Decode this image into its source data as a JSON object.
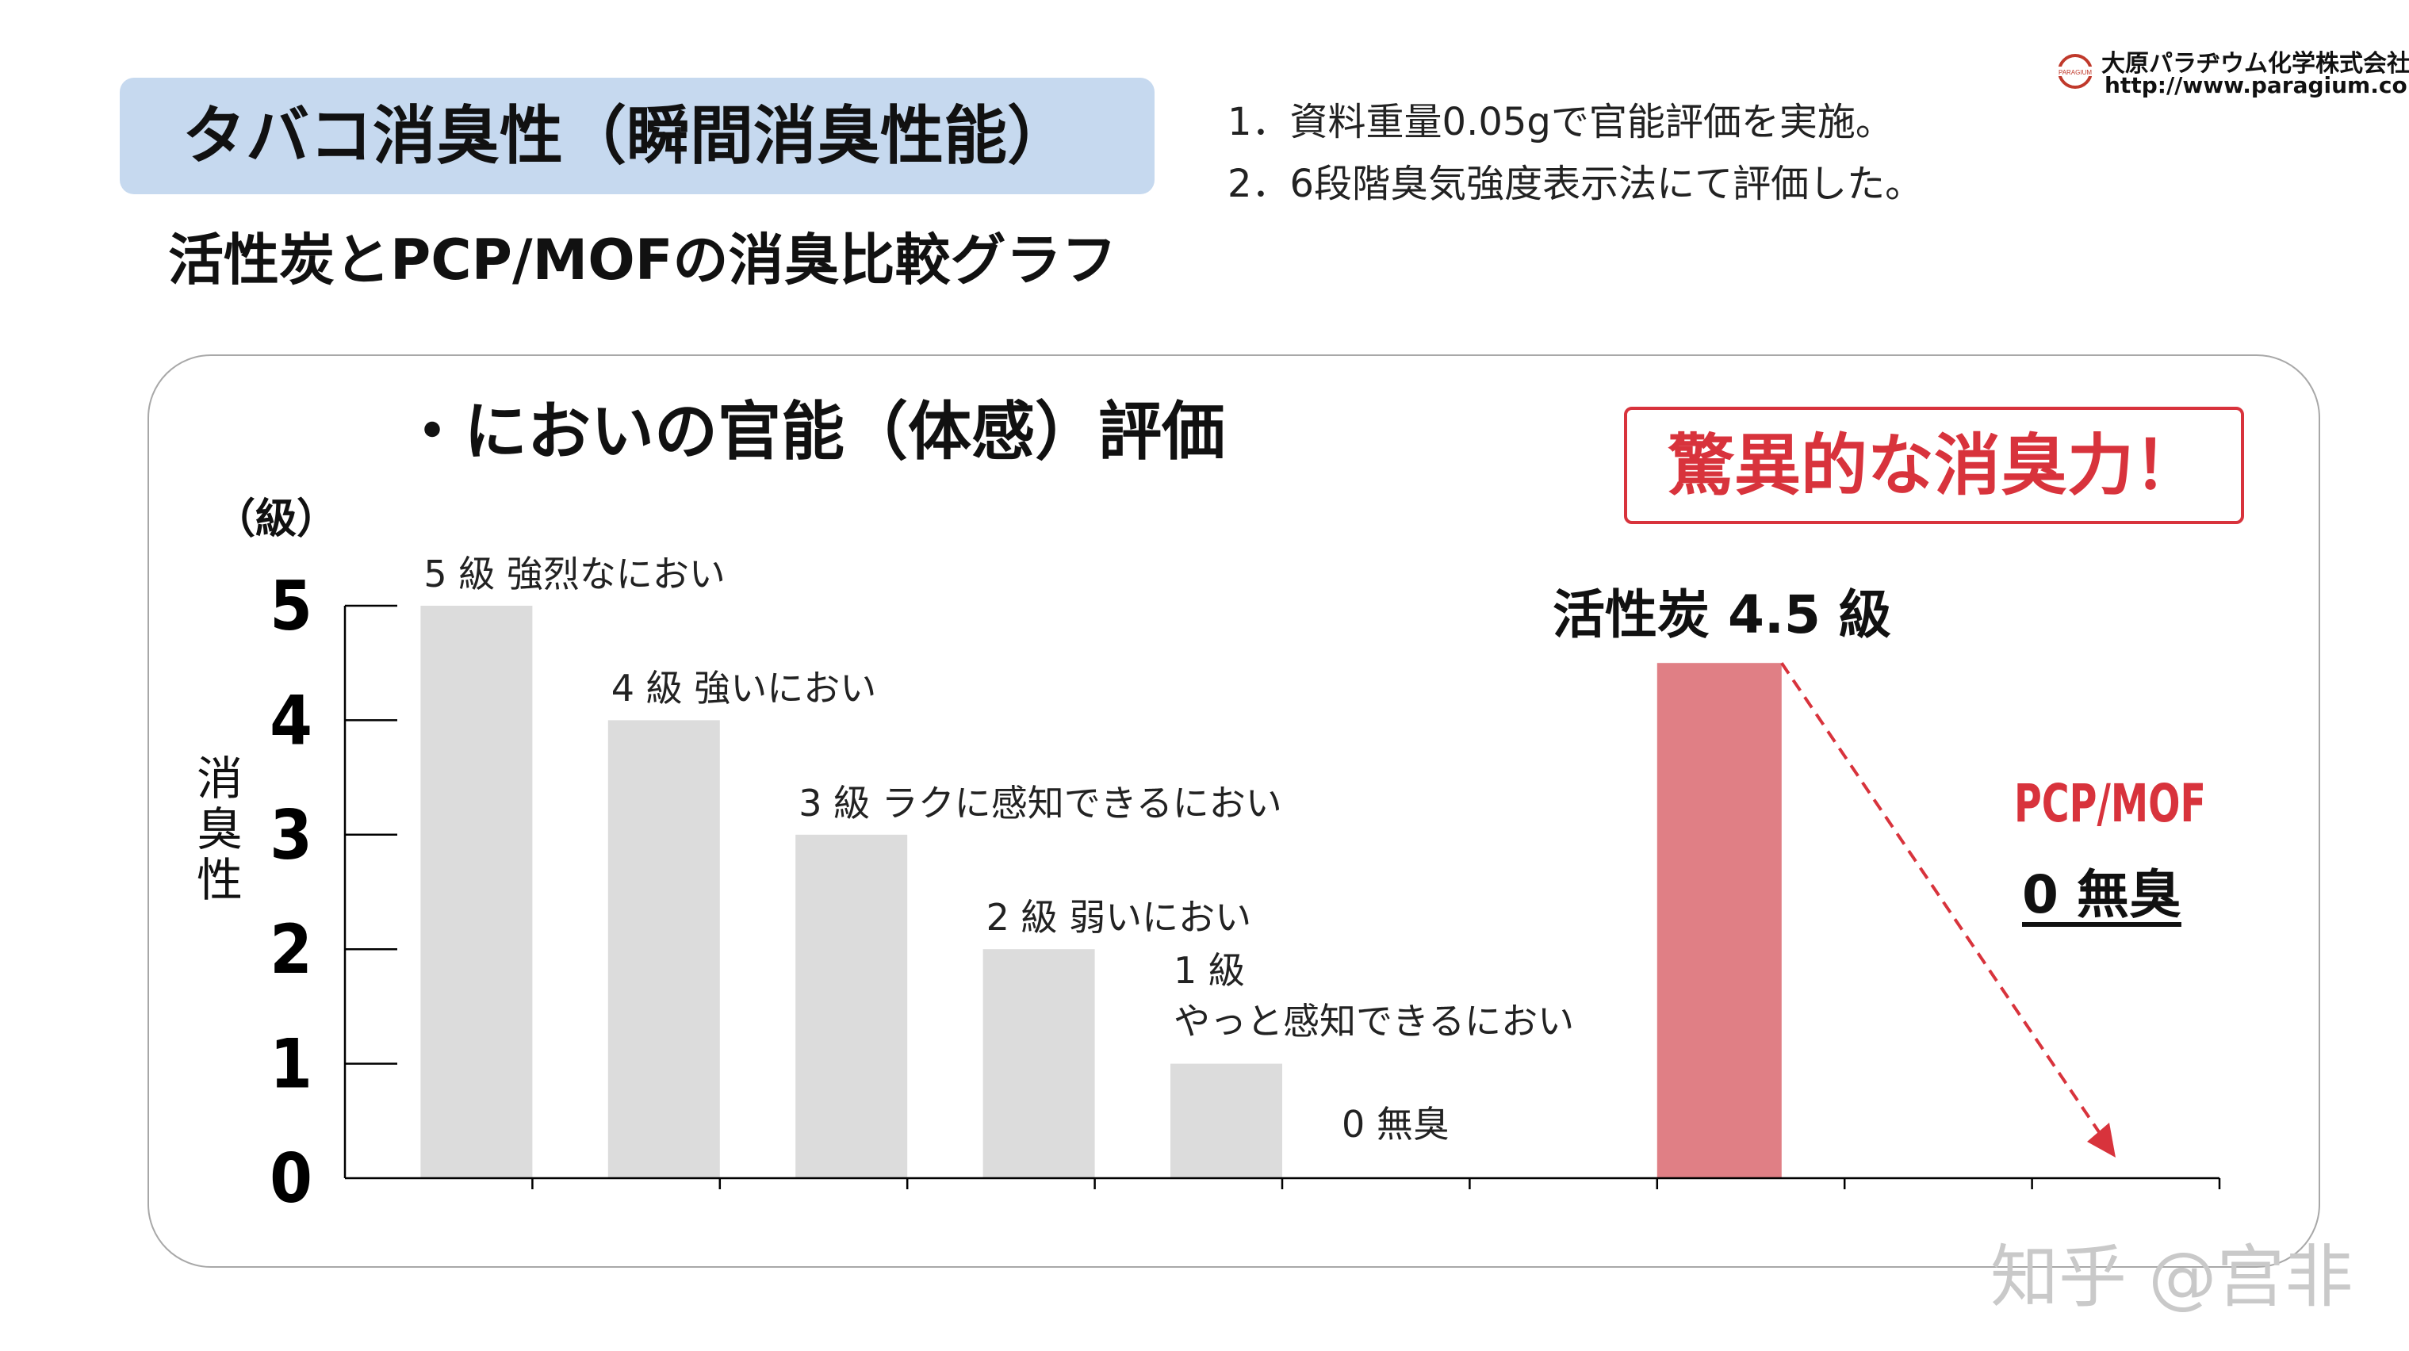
{
  "header": {
    "title": "タバコ消臭性（瞬間消臭性能）",
    "subtitle": "活性炭とPCP/MOFの消臭比較グラフ",
    "notes": [
      "1．資料重量0.05gで官能評価を実施。",
      "2．6段階臭気強度表示法にて評価した。"
    ]
  },
  "logo": {
    "company": "大原パラヂウム化学株式会社",
    "url": "http://www.paragium.co.jp",
    "mark_text": "PARAGIUM",
    "color": "#c0392b"
  },
  "panel": {
    "heading": "・においの官能（体感）評価",
    "callout": "驚異的な消臭力！",
    "unit": "（級）",
    "ylabel": "消臭性"
  },
  "chart_data": {
    "type": "bar",
    "ylim": [
      0,
      5
    ],
    "yticks": [
      "0",
      "1",
      "2",
      "3",
      "4",
      "5"
    ],
    "grid": false,
    "reference_levels": [
      {
        "value": 5,
        "label": "5 級 強烈なにおい"
      },
      {
        "value": 4,
        "label": "4 級 強いにおい"
      },
      {
        "value": 3,
        "label": "3 級 ラクに感知できるにおい"
      },
      {
        "value": 2,
        "label": "2 級 弱いにおい"
      },
      {
        "value": 1,
        "label": "1 級",
        "label2": "やっと感知できるにおい"
      },
      {
        "value": 0,
        "label": "0 無臭"
      }
    ],
    "series": [
      {
        "name": "活性炭",
        "value": 4.5,
        "label": "活性炭 4.5 級",
        "color": "#e07f85"
      },
      {
        "name": "PCP/MOF",
        "value": 0,
        "label": "PCP/MOF",
        "value_label": "0 無臭",
        "color": "#d8333c"
      }
    ],
    "reference_color": "#dcdcdc",
    "arrow": "dashed red arrow from 活性炭 bar top down to PCP/MOF at 0"
  },
  "watermark": "知乎 @宫非"
}
